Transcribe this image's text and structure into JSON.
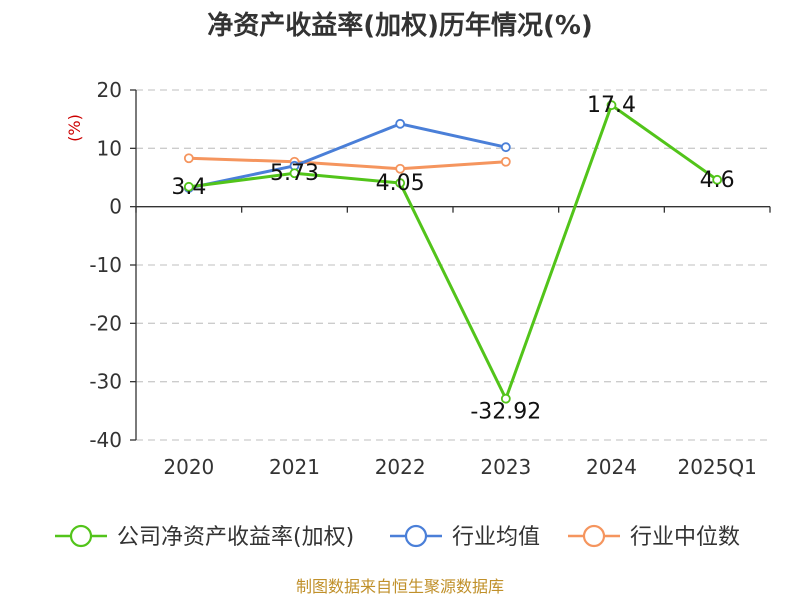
{
  "chart_data": {
    "type": "line",
    "title": "净资产收益率(加权)历年情况(%)",
    "ylabel": "(%)",
    "categories": [
      "2020",
      "2021",
      "2022",
      "2023",
      "2024",
      "2025Q1"
    ],
    "ylim": [
      -40,
      20
    ],
    "yticks": [
      20,
      10,
      0,
      -10,
      -20,
      -30,
      -40
    ],
    "grid": true,
    "legend_position": "bottom",
    "series": [
      {
        "name": "公司净资产收益率(加权)",
        "color": "#52c41a",
        "values": [
          3.4,
          5.73,
          4.05,
          -32.92,
          17.4,
          4.6
        ],
        "labels": [
          "3.4",
          "5.73",
          "4.05",
          "-32.92",
          "17.4",
          "4.6"
        ]
      },
      {
        "name": "行业均值",
        "color": "#4a7fd8",
        "values": [
          3.2,
          7.0,
          14.2,
          10.2,
          null,
          null
        ]
      },
      {
        "name": "行业中位数",
        "color": "#f5955e",
        "values": [
          8.3,
          7.7,
          6.5,
          7.7,
          null,
          null
        ]
      }
    ]
  },
  "source": "制图数据来自恒生聚源数据库"
}
